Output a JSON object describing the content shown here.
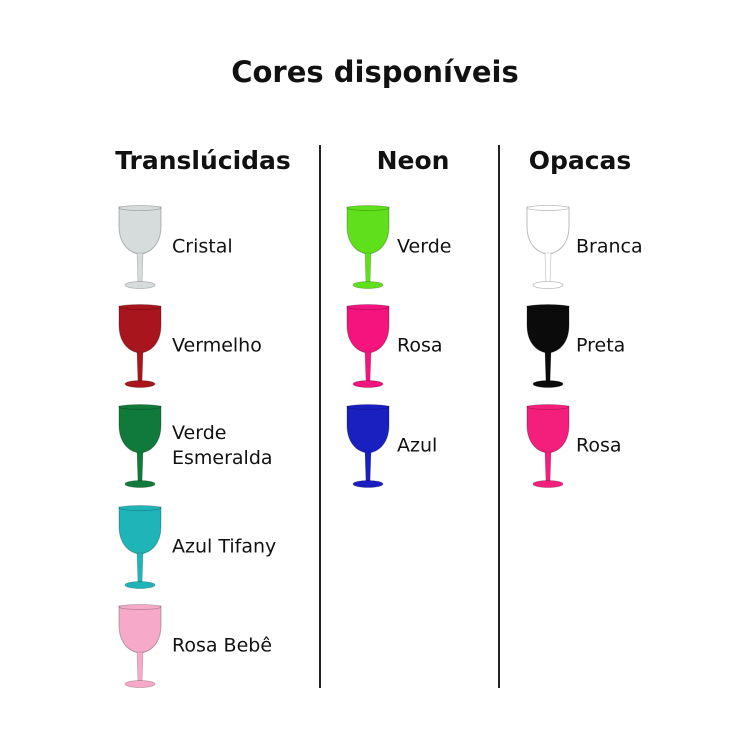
{
  "title": "Cores disponíveis",
  "columns": [
    {
      "heading": "Translúcidas",
      "items": [
        "Cristal",
        "Vermelho",
        "Verde Esmeralda",
        "Azul Tifany",
        "Rosa Bebê"
      ]
    },
    {
      "heading": "Neon",
      "items": [
        "Verde",
        "Rosa",
        "Azul"
      ]
    },
    {
      "heading": "Opacas",
      "items": [
        "Branca",
        "Preta",
        "Rosa"
      ]
    }
  ]
}
